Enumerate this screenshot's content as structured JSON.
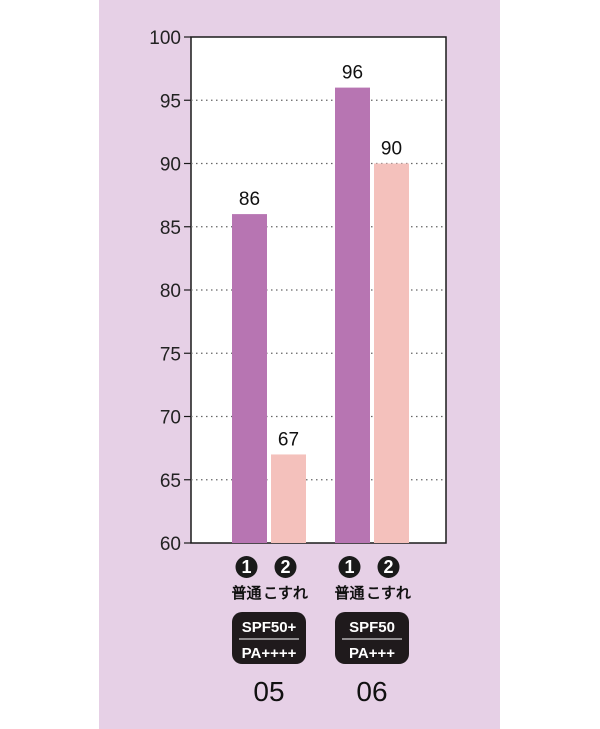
{
  "chart_data": {
    "type": "bar",
    "ylim": [
      60,
      100
    ],
    "yticks": [
      60,
      65,
      70,
      75,
      80,
      85,
      90,
      95,
      100
    ],
    "grid": true,
    "colors": {
      "normal": "#b775b2",
      "rubbed": "#f4c1bc",
      "plot_bg": "#ffffff",
      "panel_bg": "#e6d0e6"
    },
    "groups": [
      {
        "product": "05",
        "badge": [
          "SPF50+",
          "PA++++"
        ],
        "bars": [
          {
            "num": "1",
            "label": "普通",
            "value": 86,
            "series": "normal"
          },
          {
            "num": "2",
            "label": "こすれ",
            "value": 67,
            "series": "rubbed"
          }
        ]
      },
      {
        "product": "06",
        "badge": [
          "SPF50",
          "PA+++"
        ],
        "bars": [
          {
            "num": "1",
            "label": "普通",
            "value": 96,
            "series": "normal"
          },
          {
            "num": "2",
            "label": "こすれ",
            "value": 90,
            "series": "rubbed"
          }
        ]
      }
    ]
  }
}
